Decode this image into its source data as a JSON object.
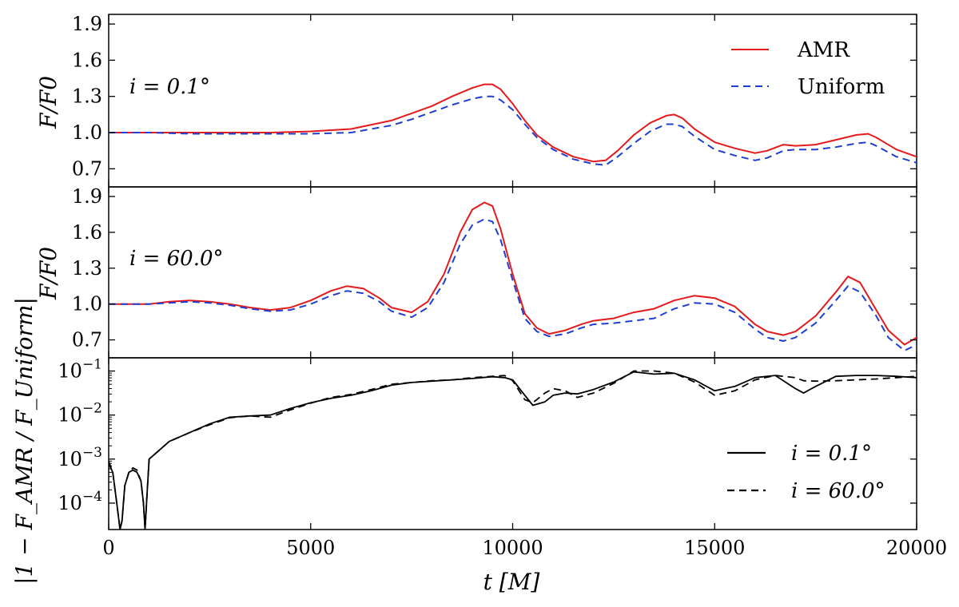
{
  "chart_data": [
    {
      "type": "line",
      "panel": "top",
      "annotation": "i = 0.1°",
      "ylabel": "F/F0",
      "ylim": [
        0.55,
        1.98
      ],
      "yticks": [
        "0.7",
        "1.0",
        "1.3",
        "1.6",
        "1.9"
      ],
      "legend": {
        "position": "top-right"
      },
      "series": [
        {
          "name": "AMR",
          "color": "#e41a1c",
          "dash": "solid",
          "x": [
            0,
            1000,
            2000,
            3000,
            4000,
            5000,
            6000,
            7000,
            7500,
            8000,
            8500,
            9000,
            9300,
            9500,
            9700,
            10000,
            10300,
            10600,
            11000,
            11500,
            12000,
            12300,
            12600,
            13000,
            13400,
            13800,
            14000,
            14200,
            14500,
            15000,
            15500,
            16000,
            16300,
            16700,
            17000,
            17500,
            18000,
            18500,
            18800,
            19000,
            19500,
            20000
          ],
          "y": [
            1.0,
            1.0,
            1.0,
            1.0,
            1.0,
            1.01,
            1.03,
            1.1,
            1.16,
            1.22,
            1.3,
            1.37,
            1.4,
            1.4,
            1.36,
            1.24,
            1.1,
            0.98,
            0.88,
            0.8,
            0.76,
            0.77,
            0.85,
            0.98,
            1.08,
            1.14,
            1.15,
            1.12,
            1.03,
            0.92,
            0.87,
            0.83,
            0.85,
            0.9,
            0.89,
            0.9,
            0.94,
            0.98,
            0.99,
            0.96,
            0.86,
            0.8
          ]
        },
        {
          "name": "Uniform",
          "color": "#1f3fd0",
          "dash": "dashed",
          "x": [
            0,
            1000,
            2000,
            3000,
            4000,
            5000,
            6000,
            7000,
            7500,
            8000,
            8500,
            9000,
            9300,
            9500,
            9700,
            10000,
            10300,
            10600,
            11000,
            11500,
            12000,
            12300,
            12600,
            13000,
            13400,
            13800,
            14000,
            14200,
            14500,
            15000,
            15500,
            16000,
            16300,
            16700,
            17000,
            17500,
            18000,
            18500,
            18800,
            19000,
            19500,
            20000
          ],
          "y": [
            1.0,
            1.0,
            0.99,
            0.99,
            0.99,
            0.99,
            1.0,
            1.06,
            1.11,
            1.17,
            1.23,
            1.28,
            1.3,
            1.3,
            1.27,
            1.19,
            1.07,
            0.96,
            0.86,
            0.78,
            0.74,
            0.73,
            0.8,
            0.91,
            1.01,
            1.07,
            1.07,
            1.05,
            0.97,
            0.86,
            0.81,
            0.77,
            0.79,
            0.85,
            0.86,
            0.86,
            0.88,
            0.91,
            0.92,
            0.89,
            0.8,
            0.75
          ]
        }
      ]
    },
    {
      "type": "line",
      "panel": "middle",
      "annotation": "i = 60.0°",
      "ylabel": "F/F0",
      "ylim": [
        0.55,
        1.98
      ],
      "yticks": [
        "0.7",
        "1.0",
        "1.3",
        "1.6",
        "1.9"
      ],
      "series": [
        {
          "name": "AMR",
          "color": "#e41a1c",
          "dash": "solid",
          "x": [
            0,
            500,
            1000,
            1500,
            2000,
            2500,
            3000,
            3500,
            4000,
            4500,
            5000,
            5500,
            5900,
            6300,
            6700,
            7000,
            7500,
            7900,
            8300,
            8700,
            9000,
            9300,
            9500,
            9700,
            10000,
            10300,
            10600,
            10900,
            11300,
            11700,
            12000,
            12500,
            13000,
            13500,
            14000,
            14500,
            15000,
            15500,
            16000,
            16300,
            16700,
            17000,
            17500,
            18000,
            18300,
            18600,
            19000,
            19300,
            19700,
            20000
          ],
          "y": [
            1.0,
            1.0,
            1.0,
            1.02,
            1.03,
            1.02,
            1.0,
            0.97,
            0.95,
            0.97,
            1.03,
            1.11,
            1.15,
            1.13,
            1.05,
            0.97,
            0.93,
            1.02,
            1.25,
            1.6,
            1.79,
            1.85,
            1.82,
            1.63,
            1.25,
            0.92,
            0.8,
            0.75,
            0.78,
            0.83,
            0.86,
            0.88,
            0.93,
            0.96,
            1.03,
            1.07,
            1.05,
            0.98,
            0.83,
            0.77,
            0.74,
            0.77,
            0.9,
            1.1,
            1.23,
            1.18,
            0.95,
            0.78,
            0.66,
            0.72
          ]
        },
        {
          "name": "Uniform",
          "color": "#1f3fd0",
          "dash": "dashed",
          "x": [
            0,
            500,
            1000,
            1500,
            2000,
            2500,
            3000,
            3500,
            4000,
            4500,
            5000,
            5500,
            5900,
            6300,
            6700,
            7000,
            7500,
            7900,
            8300,
            8700,
            9000,
            9300,
            9500,
            9700,
            10000,
            10300,
            10600,
            10900,
            11300,
            11700,
            12000,
            12500,
            13000,
            13500,
            14000,
            14500,
            15000,
            15500,
            16000,
            16300,
            16700,
            17000,
            17500,
            18000,
            18300,
            18600,
            19000,
            19300,
            19700,
            20000
          ],
          "y": [
            1.0,
            1.0,
            1.0,
            1.01,
            1.02,
            1.01,
            0.99,
            0.96,
            0.94,
            0.95,
            1.0,
            1.07,
            1.11,
            1.09,
            1.02,
            0.94,
            0.89,
            0.97,
            1.18,
            1.5,
            1.66,
            1.71,
            1.69,
            1.54,
            1.2,
            0.88,
            0.77,
            0.73,
            0.75,
            0.8,
            0.83,
            0.84,
            0.86,
            0.88,
            0.96,
            1.01,
            1.0,
            0.93,
            0.79,
            0.72,
            0.69,
            0.72,
            0.84,
            1.03,
            1.15,
            1.1,
            0.9,
            0.72,
            0.61,
            0.66
          ]
        }
      ]
    },
    {
      "type": "line",
      "panel": "bottom",
      "ylabel": "|1 − F_AMR / F_Uniform|",
      "yscale": "log",
      "ylim_log10": [
        -4.6,
        -0.7
      ],
      "yticks": [
        "10^-4",
        "10^-3",
        "10^-2",
        "10^-1"
      ],
      "legend": {
        "position": "lower-right"
      },
      "series": [
        {
          "name": "i = 0.1°",
          "color": "#000000",
          "dash": "solid",
          "x": [
            0,
            100,
            200,
            280,
            330,
            400,
            500,
            600,
            700,
            800,
            860,
            900,
            950,
            1000,
            1500,
            2000,
            2500,
            3000,
            3500,
            4000,
            4500,
            5000,
            5500,
            6000,
            6500,
            7000,
            7500,
            8000,
            8500,
            9000,
            9500,
            9800,
            10000,
            10300,
            10500,
            10800,
            11000,
            11300,
            11600,
            12000,
            12500,
            13000,
            13500,
            14000,
            14500,
            15000,
            15500,
            16000,
            16500,
            17000,
            17200,
            17500,
            18000,
            18500,
            19000,
            19500,
            20000
          ],
          "y": [
            -3.1,
            -3.3,
            -4.0,
            -4.6,
            -4.4,
            -3.6,
            -3.3,
            -3.25,
            -3.3,
            -3.5,
            -4.0,
            -4.6,
            -3.8,
            -3.0,
            -2.6,
            -2.4,
            -2.2,
            -2.05,
            -2.02,
            -2.0,
            -1.85,
            -1.72,
            -1.62,
            -1.55,
            -1.45,
            -1.32,
            -1.26,
            -1.23,
            -1.2,
            -1.17,
            -1.13,
            -1.15,
            -1.2,
            -1.55,
            -1.78,
            -1.7,
            -1.55,
            -1.5,
            -1.52,
            -1.42,
            -1.25,
            -1.02,
            -1.07,
            -1.05,
            -1.2,
            -1.45,
            -1.35,
            -1.15,
            -1.1,
            -1.4,
            -1.5,
            -1.35,
            -1.12,
            -1.1,
            -1.1,
            -1.12,
            -1.15
          ]
        },
        {
          "name": "i = 60.0°",
          "color": "#000000",
          "dash": "dashed",
          "x": [
            0,
            100,
            200,
            280,
            330,
            400,
            500,
            600,
            700,
            800,
            860,
            900,
            950,
            1000,
            1500,
            2000,
            2500,
            3000,
            3500,
            4000,
            4500,
            5000,
            5500,
            6000,
            6500,
            7000,
            7500,
            8000,
            8500,
            9000,
            9500,
            9800,
            10000,
            10300,
            10500,
            10800,
            11000,
            11300,
            11600,
            12000,
            12500,
            13000,
            13500,
            14000,
            14500,
            15000,
            15500,
            16000,
            16500,
            17000,
            17200,
            17500,
            18000,
            18500,
            19000,
            19500,
            20000
          ],
          "y": [
            -3.05,
            -3.3,
            -4.0,
            -4.6,
            -4.4,
            -3.6,
            -3.3,
            -3.2,
            -3.25,
            -3.5,
            -4.0,
            -4.6,
            -3.8,
            -3.0,
            -2.6,
            -2.4,
            -2.22,
            -2.06,
            -2.02,
            -2.05,
            -1.88,
            -1.73,
            -1.6,
            -1.53,
            -1.42,
            -1.3,
            -1.26,
            -1.22,
            -1.2,
            -1.15,
            -1.12,
            -1.1,
            -1.22,
            -1.65,
            -1.72,
            -1.5,
            -1.4,
            -1.45,
            -1.6,
            -1.5,
            -1.28,
            -1.0,
            -1.0,
            -1.05,
            -1.25,
            -1.55,
            -1.45,
            -1.2,
            -1.1,
            -1.15,
            -1.22,
            -1.23,
            -1.22,
            -1.2,
            -1.18,
            -1.15,
            -1.12
          ]
        }
      ]
    }
  ],
  "x_axis": {
    "label": "t   [M]",
    "xlim": [
      0,
      20000
    ],
    "ticks": [
      "0",
      "5000",
      "10000",
      "15000",
      "20000"
    ]
  },
  "labels": {
    "top_annotation": "i = 0.1°",
    "mid_annotation": "i = 60.0°",
    "ylabel_ratio": "F/F0",
    "ylabel_diff": "|1 − F_AMR / F_Uniform|",
    "legend_amr": "AMR",
    "legend_uniform": "Uniform",
    "legend_i01": "i = 0.1°",
    "legend_i60": "i = 60.0°"
  }
}
